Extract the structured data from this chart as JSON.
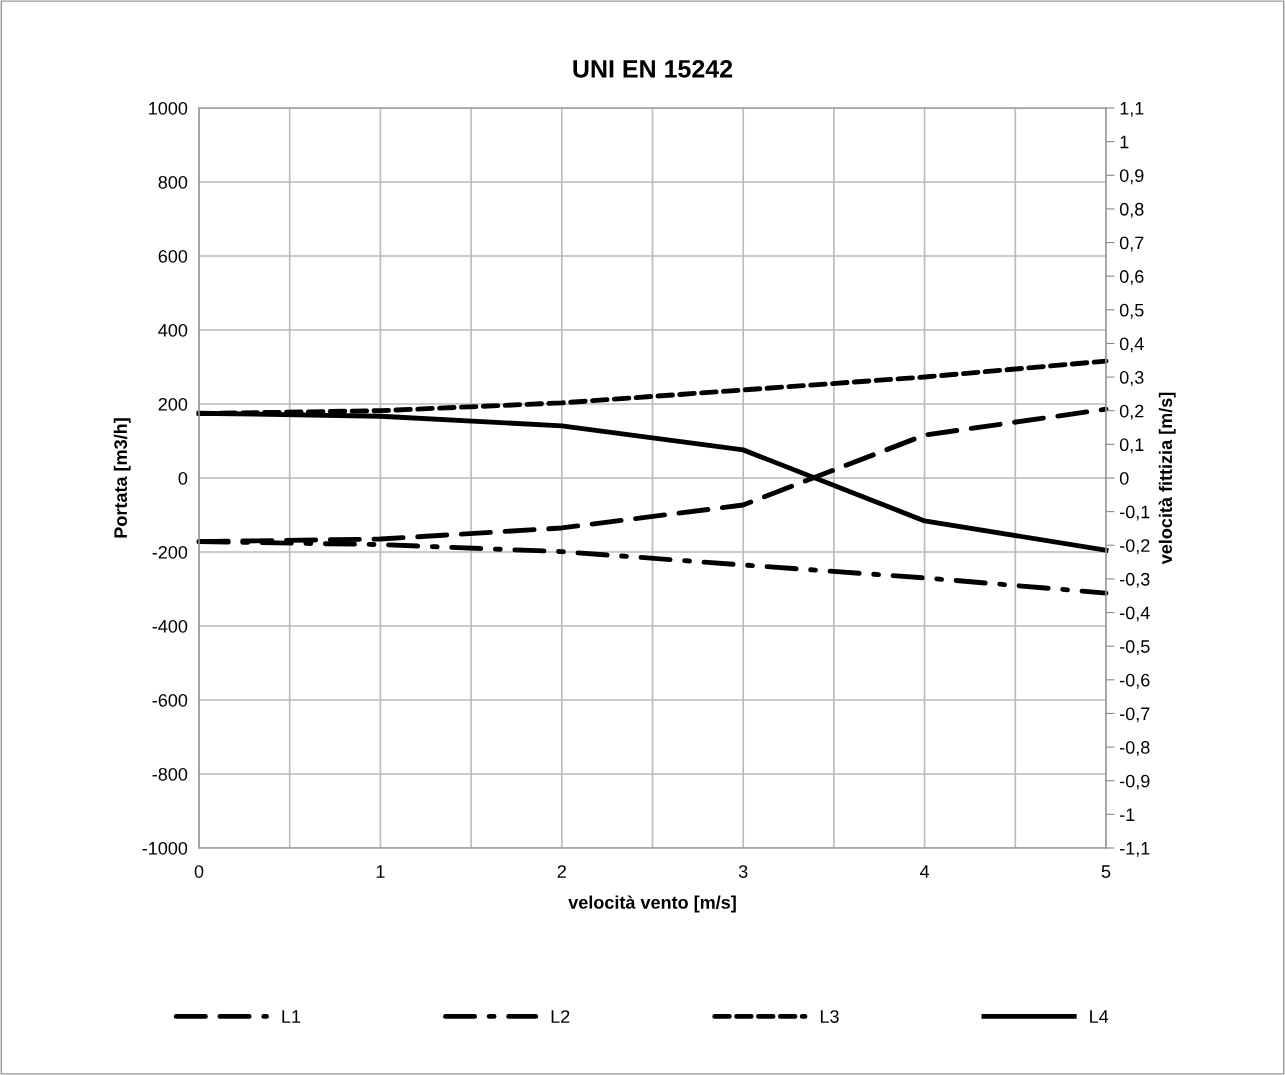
{
  "chart_data": {
    "type": "line",
    "title": "UNI EN 15242",
    "xlabel": "velocità vento [m/s]",
    "ylabel": "Portata [m3/h]",
    "y2label": "velocità fittizia [m/s]",
    "x": [
      0,
      1,
      2,
      3,
      4,
      5
    ],
    "series": [
      {
        "name": "L1",
        "color": "#000000",
        "line_style": "dashed",
        "values": [
          -172,
          -165,
          -135,
          -73,
          116,
          186
        ]
      },
      {
        "name": "L2",
        "color": "#000000",
        "line_style": "dashdot",
        "values": [
          -172,
          -180,
          -199,
          -235,
          -270,
          -311
        ]
      },
      {
        "name": "L3",
        "color": "#000000",
        "line_style": "dotted",
        "values": [
          174,
          182,
          203,
          238,
          273,
          316
        ]
      },
      {
        "name": "L4",
        "color": "#000000",
        "line_style": "solid",
        "values": [
          175,
          167,
          141,
          76,
          -116,
          -195
        ]
      }
    ],
    "xlim": [
      0,
      5
    ],
    "xticks": [
      0,
      {
        "value": 0.5,
        "label": null
      },
      1,
      {
        "value": 1.5,
        "label": null
      },
      2,
      {
        "value": 2.5,
        "label": null
      },
      3,
      {
        "value": 3.5,
        "label": null
      },
      4,
      {
        "value": 4.5,
        "label": null
      },
      5
    ],
    "ylim": [
      -1000,
      1000
    ],
    "yticks": [
      -1000,
      -800,
      -600,
      -400,
      -200,
      0,
      200,
      400,
      600,
      800,
      1000
    ],
    "y2lim": [
      -1.1,
      1.1
    ],
    "y2ticks": [
      {
        "value": -1.1,
        "label": "-1,1"
      },
      {
        "value": -1.0,
        "label": "-1"
      },
      {
        "value": -0.9,
        "label": "-0,9"
      },
      {
        "value": -0.8,
        "label": "-0,8"
      },
      {
        "value": -0.7,
        "label": "-0,7"
      },
      {
        "value": -0.6,
        "label": "-0,6"
      },
      {
        "value": -0.5,
        "label": "-0,5"
      },
      {
        "value": -0.4,
        "label": "-0,4"
      },
      {
        "value": -0.3,
        "label": "-0,3"
      },
      {
        "value": -0.2,
        "label": "-0,2"
      },
      {
        "value": -0.1,
        "label": "-0,1"
      },
      {
        "value": 0,
        "label": "0"
      },
      {
        "value": 0.1,
        "label": "0,1"
      },
      {
        "value": 0.2,
        "label": "0,2"
      },
      {
        "value": 0.3,
        "label": "0,3"
      },
      {
        "value": 0.4,
        "label": "0,4"
      },
      {
        "value": 0.5,
        "label": "0,5"
      },
      {
        "value": 0.6,
        "label": "0,6"
      },
      {
        "value": 0.7,
        "label": "0,7"
      },
      {
        "value": 0.8,
        "label": "0,8"
      },
      {
        "value": 0.9,
        "label": "0,9"
      },
      {
        "value": 1.0,
        "label": "1"
      },
      {
        "value": 1.1,
        "label": "1,1"
      }
    ],
    "grid": true,
    "legend": "bottom",
    "marker": "none"
  }
}
